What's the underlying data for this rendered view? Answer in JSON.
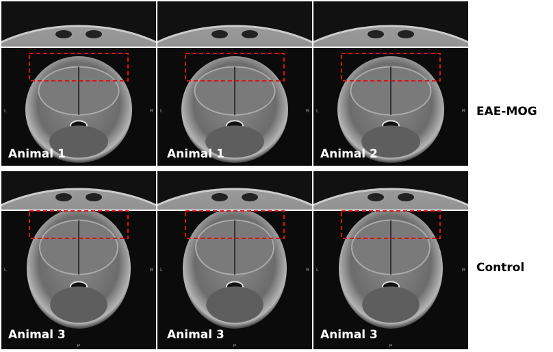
{
  "groups": [
    {
      "label": "EAE-MOG",
      "panels": [
        "Animal 1",
        "Animal 1",
        "Animal 2"
      ]
    },
    {
      "label": "Control",
      "panels": [
        "Animal 3",
        "Animal 3",
        "Animal 3"
      ]
    }
  ],
  "orientation_marks": {
    "left": "L",
    "right": "R",
    "posterior": "P"
  }
}
